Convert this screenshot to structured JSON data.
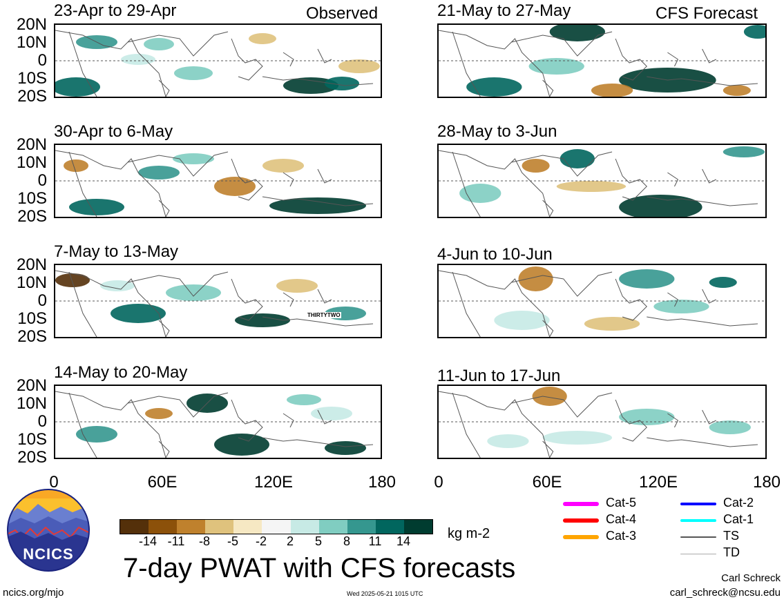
{
  "header": {
    "observed_label": "Observed",
    "forecast_label": "CFS Forecast"
  },
  "lat_labels": [
    "20N",
    "10N",
    "0",
    "10S",
    "20S"
  ],
  "lon_labels": [
    "0",
    "60E",
    "120E",
    "180"
  ],
  "panels_observed": [
    {
      "title": "23-Apr to 29-Apr"
    },
    {
      "title": "30-Apr to 6-May"
    },
    {
      "title": "7-May to 13-May"
    },
    {
      "title": "14-May to 20-May"
    }
  ],
  "panels_forecast": [
    {
      "title": "21-May to 27-May"
    },
    {
      "title": "28-May to 3-Jun"
    },
    {
      "title": "4-Jun to 10-Jun"
    },
    {
      "title": "11-Jun to 17-Jun"
    }
  ],
  "storm_label": "THIRTYTWO",
  "colorbar": {
    "labels": [
      "-14",
      "-11",
      "-8",
      "-5",
      "-2",
      "2",
      "5",
      "8",
      "11",
      "14"
    ],
    "colors": [
      "#54300a",
      "#8c510a",
      "#bf812d",
      "#dfc27d",
      "#f6e8c3",
      "#f5f5f5",
      "#c7eae5",
      "#80cdc1",
      "#35978f",
      "#01665e",
      "#003c30"
    ],
    "units": "kg m-2"
  },
  "title": "7-day PWAT with CFS forecasts",
  "legend": [
    {
      "label": "Cat-5",
      "color": "#ff00ff"
    },
    {
      "label": "Cat-4",
      "color": "#ff0000"
    },
    {
      "label": "Cat-3",
      "color": "#ffa500"
    },
    {
      "label": "Cat-2",
      "color": "#0000ff"
    },
    {
      "label": "Cat-1",
      "color": "#00ffff"
    },
    {
      "label": "TS",
      "color": "#555555"
    },
    {
      "label": "TD",
      "color": "#aaaaaa"
    }
  ],
  "logo": {
    "text": "NCICS"
  },
  "footer": {
    "url": "ncics.org/mjo",
    "timestamp": "Wed 2025-05-21 1015 UTC",
    "author": "Carl Schreck",
    "email": "carl_schreck@ncsu.edu"
  }
}
